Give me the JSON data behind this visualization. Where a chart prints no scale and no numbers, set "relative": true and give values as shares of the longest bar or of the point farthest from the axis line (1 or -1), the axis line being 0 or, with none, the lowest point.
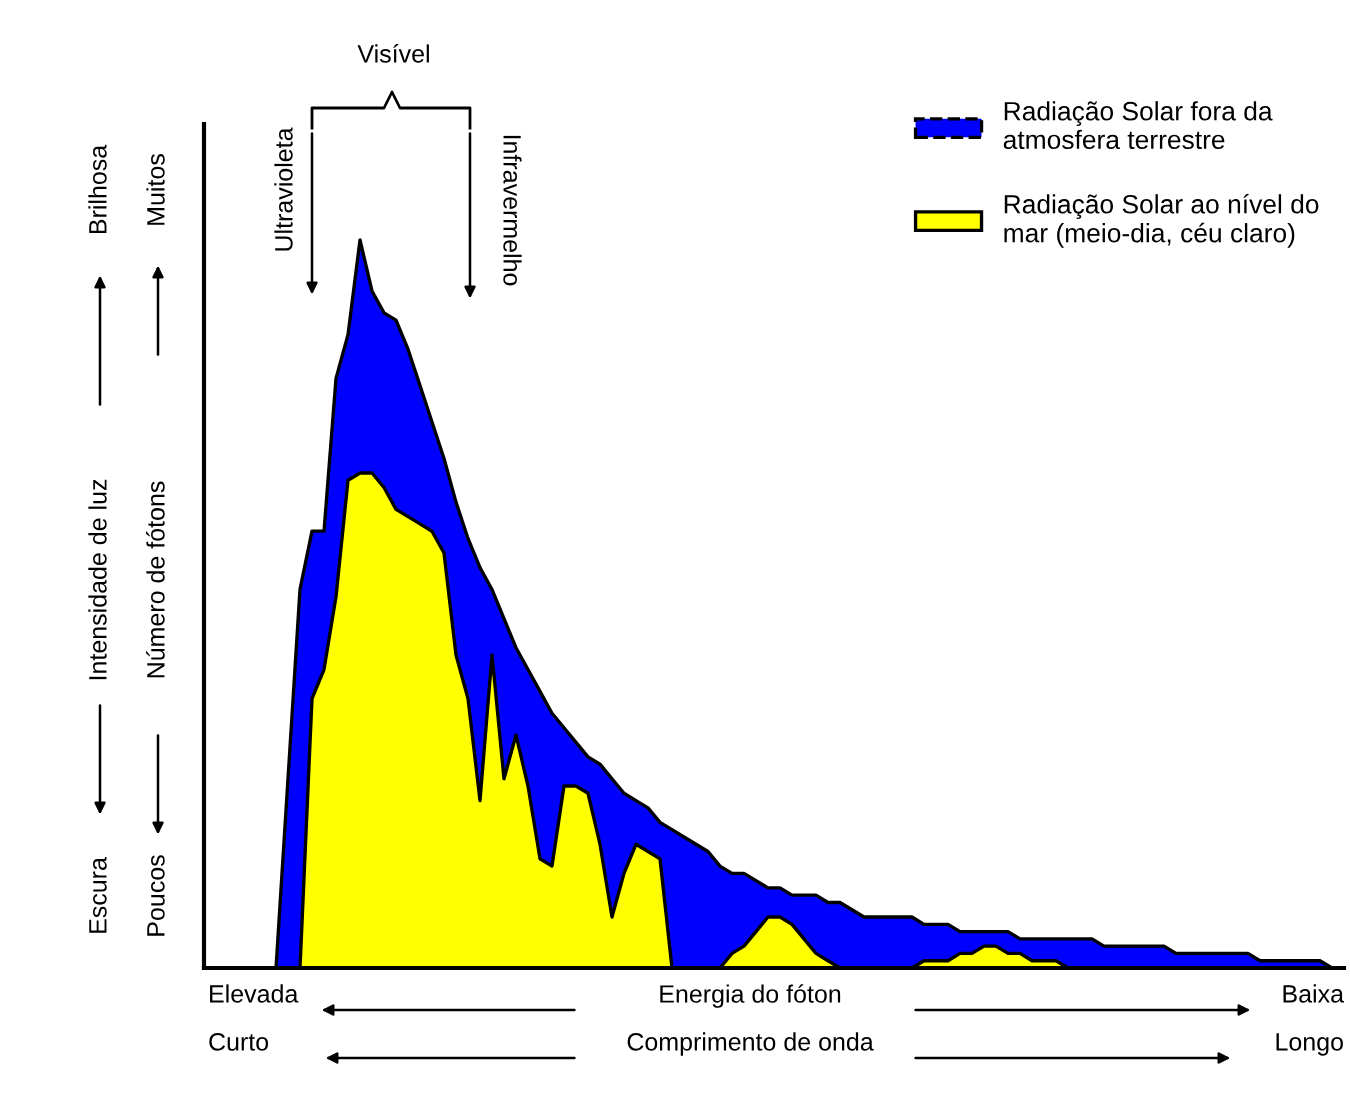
{
  "chart_data": {
    "type": "area",
    "relative": true,
    "xlabel": "Energia do fóton",
    "annotations": [
      "Visível",
      "Ultravioleta",
      "Infravermelho",
      "Brilhosa",
      "Escura",
      "Muitos",
      "Poucos",
      "Número de fótons",
      "Elevada",
      "Baixa",
      "Curto",
      "Comprimento de onda",
      "Longo",
      "Intensidade de luz"
    ],
    "categories": [
      null,
      null,
      null,
      null,
      null,
      null,
      null,
      null,
      null,
      null,
      null,
      null,
      null,
      null,
      null,
      null,
      null,
      null,
      null,
      null,
      null,
      null,
      null,
      null,
      null,
      null,
      null,
      null,
      null,
      null,
      null,
      null,
      null,
      null,
      null,
      null,
      null,
      null,
      null,
      null,
      null,
      null,
      null,
      null,
      null,
      null,
      null,
      null,
      null,
      null,
      null,
      null,
      null,
      null,
      null,
      null,
      null,
      null,
      null,
      null,
      null,
      null,
      null,
      null,
      null,
      null,
      null,
      null,
      null,
      null,
      null,
      null,
      null,
      null,
      null,
      null,
      null,
      null,
      null,
      null,
      null,
      null,
      null,
      null,
      null,
      null,
      null,
      null,
      null,
      null,
      null
    ],
    "legend": "top right",
    "series": [
      {
        "name": "Radiação Solar fora da\natmosfera terrestre",
        "color": "#0000ff",
        "line_style": "dashed",
        "values": [
          0,
          0,
          0.26,
          0.52,
          0.6,
          0.6,
          0.81,
          0.87,
          1.0,
          0.93,
          0.9,
          0.89,
          0.85,
          0.8,
          0.75,
          0.7,
          0.64,
          0.59,
          0.55,
          0.52,
          0.48,
          0.44,
          0.41,
          0.38,
          0.35,
          0.33,
          0.31,
          0.29,
          0.28,
          0.26,
          0.24,
          0.23,
          0.22,
          0.2,
          0.19,
          0.18,
          0.17,
          0.16,
          0.14,
          0.13,
          0.13,
          0.12,
          0.11,
          0.11,
          0.1,
          0.1,
          0.1,
          0.09,
          0.09,
          0.08,
          0.07,
          0.07,
          0.07,
          0.07,
          0.07,
          0.06,
          0.06,
          0.06,
          0.05,
          0.05,
          0.05,
          0.05,
          0.05,
          0.04,
          0.04,
          0.04,
          0.04,
          0.04,
          0.04,
          0.04,
          0.03,
          0.03,
          0.03,
          0.03,
          0.03,
          0.03,
          0.02,
          0.02,
          0.02,
          0.02,
          0.02,
          0.02,
          0.02,
          0.01,
          0.01,
          0.01,
          0.01,
          0.01,
          0.01,
          0,
          0
        ]
      },
      {
        "name": "Radiação Solar ao nível do\nmar (meio-dia, céu claro)",
        "color": "#ffff00",
        "line_style": "solid",
        "values": [
          0,
          0,
          0,
          0,
          0.37,
          0.41,
          0.51,
          0.67,
          0.68,
          0.68,
          0.66,
          0.63,
          0.62,
          0.61,
          0.6,
          0.57,
          0.43,
          0.37,
          0.23,
          0.43,
          0.26,
          0.32,
          0.25,
          0.15,
          0.14,
          0.25,
          0.25,
          0.24,
          0.17,
          0.07,
          0.13,
          0.17,
          0.16,
          0.15,
          0,
          0,
          0,
          0,
          0,
          0.02,
          0.03,
          0.05,
          0.07,
          0.07,
          0.06,
          0.04,
          0.02,
          0.01,
          0,
          0,
          0,
          0,
          0,
          0,
          0,
          0.01,
          0.01,
          0.01,
          0.02,
          0.02,
          0.03,
          0.03,
          0.02,
          0.02,
          0.01,
          0.01,
          0.01,
          0,
          0,
          0,
          0,
          0,
          0,
          0,
          0,
          0,
          0,
          0,
          0,
          0,
          0,
          0,
          0,
          0,
          0,
          0,
          0,
          0,
          0,
          0,
          0
        ]
      }
    ]
  }
}
